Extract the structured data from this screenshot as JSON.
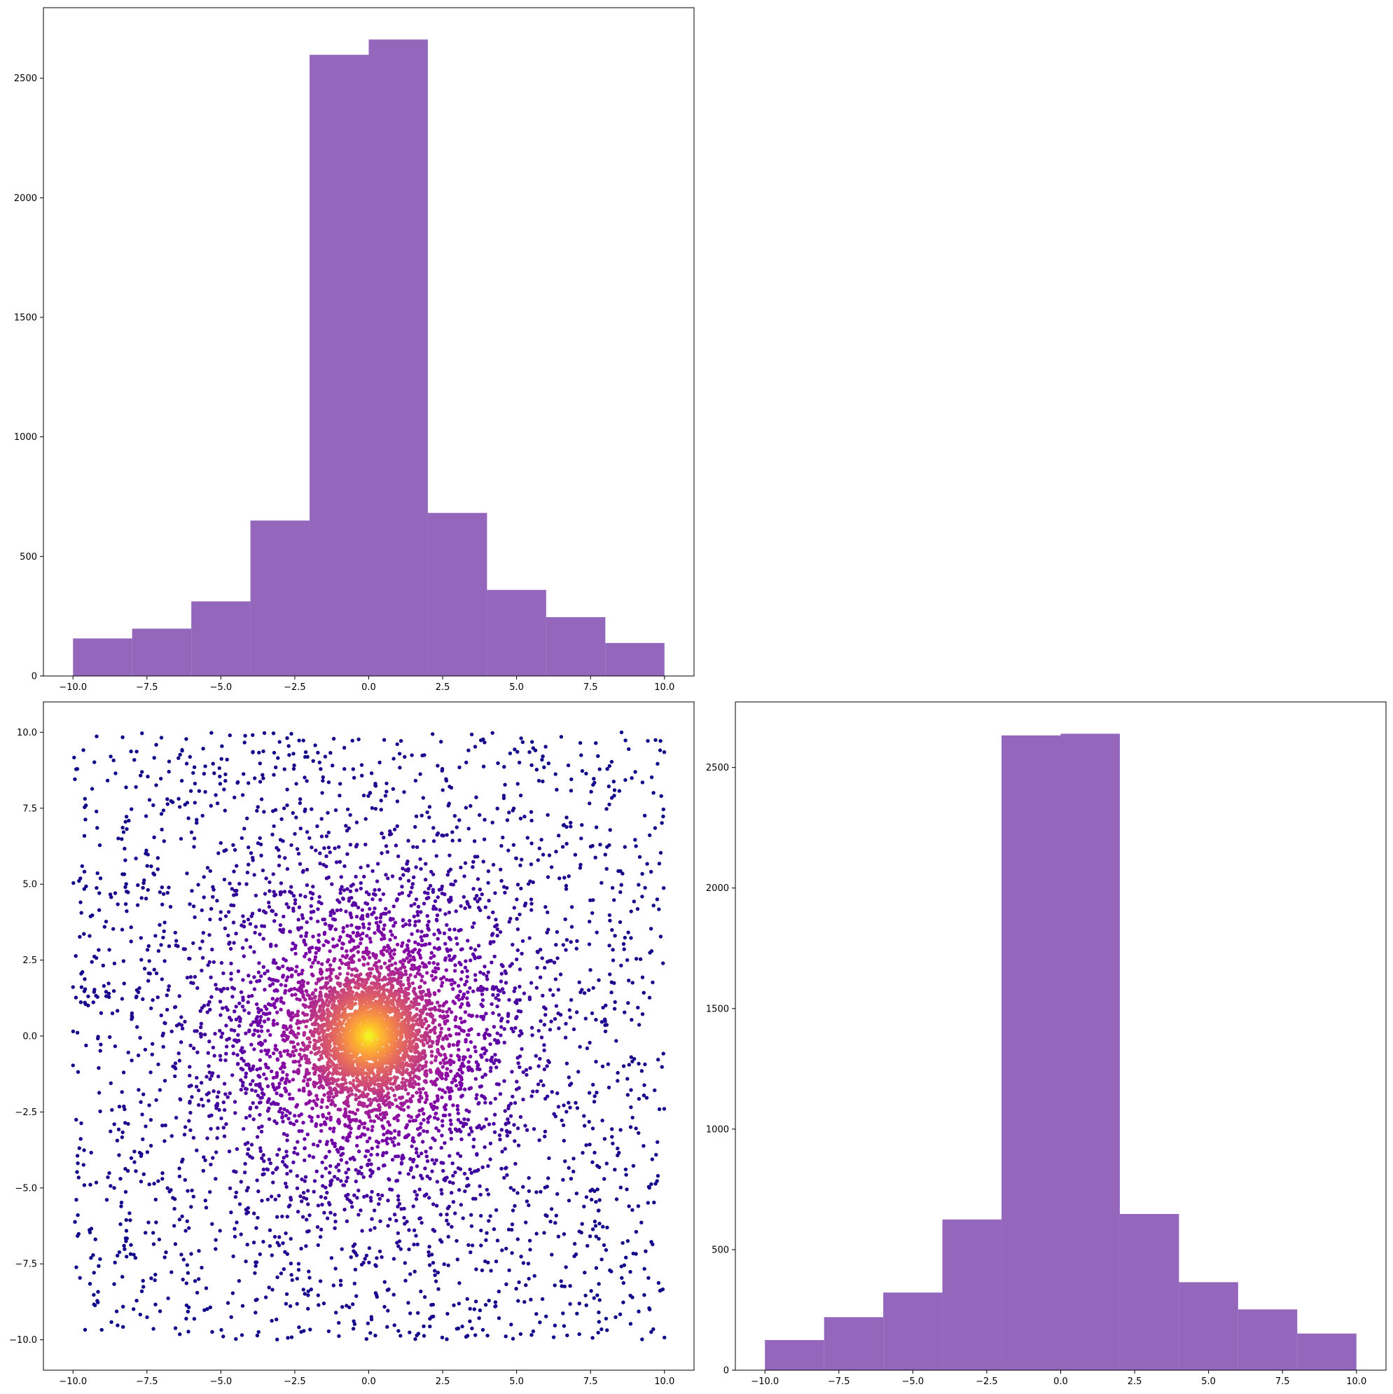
{
  "chart_data": [
    {
      "type": "bar",
      "panel": "top-left",
      "bin_edges": [
        -10,
        -8,
        -6,
        -4,
        -2,
        0,
        2,
        4,
        6,
        8,
        10
      ],
      "values": [
        157,
        198,
        312,
        650,
        2598,
        2662,
        682,
        360,
        246,
        138
      ],
      "color": "#9467bd",
      "xlim": [
        -11,
        11
      ],
      "ylim": [
        0,
        2795
      ],
      "xticks": [
        -10,
        -7.5,
        -5,
        -2.5,
        0,
        2.5,
        5,
        7.5,
        10
      ],
      "xtick_labels": [
        "−10.0",
        "−7.5",
        "−5.0",
        "−2.5",
        "0.0",
        "2.5",
        "5.0",
        "7.5",
        "10.0"
      ],
      "yticks": [
        0,
        500,
        1000,
        1500,
        2000,
        2500
      ],
      "ytick_labels": [
        "0",
        "500",
        "1000",
        "1500",
        "2000",
        "2500"
      ],
      "grid": false
    },
    {
      "type": "scatter",
      "panel": "bottom-left",
      "description": "Point density is highest near the origin; colour encodes radial distance (yellow at centre to dark violet at edges).",
      "x_range": [
        -10,
        10
      ],
      "y_range": [
        -10,
        10
      ],
      "colormap": "plasma",
      "xlim": [
        -11,
        11
      ],
      "ylim": [
        -11,
        11
      ],
      "xticks": [
        -10,
        -7.5,
        -5,
        -2.5,
        0,
        2.5,
        5,
        7.5,
        10
      ],
      "xtick_labels": [
        "−10.0",
        "−7.5",
        "−5.0",
        "−2.5",
        "0.0",
        "2.5",
        "5.0",
        "7.5",
        "10.0"
      ],
      "yticks": [
        -10,
        -7.5,
        -5,
        -2.5,
        0,
        2.5,
        5,
        7.5,
        10
      ],
      "ytick_labels": [
        "−10.0",
        "−7.5",
        "−5.0",
        "−2.5",
        "0.0",
        "2.5",
        "5.0",
        "7.5",
        "10.0"
      ],
      "grid": false
    },
    {
      "type": "bar",
      "panel": "bottom-right",
      "bin_edges": [
        -10,
        -8,
        -6,
        -4,
        -2,
        0,
        2,
        4,
        6,
        8,
        10
      ],
      "values": [
        125,
        220,
        322,
        625,
        2633,
        2640,
        648,
        365,
        252,
        152
      ],
      "color": "#9467bd",
      "xlim": [
        -11,
        11
      ],
      "ylim": [
        0,
        2772
      ],
      "xticks": [
        -10,
        -7.5,
        -5,
        -2.5,
        0,
        2.5,
        5,
        7.5,
        10
      ],
      "xtick_labels": [
        "−10.0",
        "−7.5",
        "−5.0",
        "−2.5",
        "0.0",
        "2.5",
        "5.0",
        "7.5",
        "10.0"
      ],
      "yticks": [
        0,
        500,
        1000,
        1500,
        2000,
        2500
      ],
      "ytick_labels": [
        "0",
        "500",
        "1000",
        "1500",
        "2000",
        "2500"
      ],
      "grid": false
    }
  ]
}
